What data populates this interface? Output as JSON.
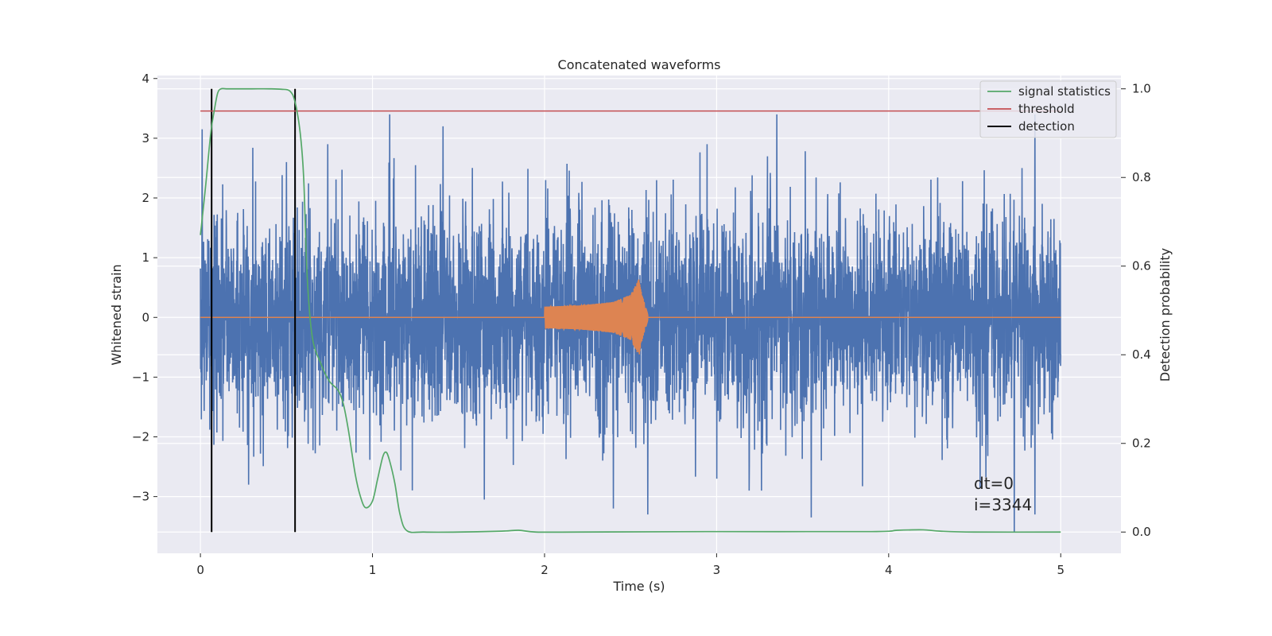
{
  "chart_data": {
    "type": "line",
    "title": "Concatenated waveforms",
    "xlabel": "Time (s)",
    "ylabel": "Whitened strain",
    "y2label": "Detection probability",
    "xlim": [
      -0.25,
      5.35
    ],
    "ylim": [
      -3.95,
      4.05
    ],
    "y2lim": [
      -0.048,
      1.03
    ],
    "xticks": [
      0,
      1,
      2,
      3,
      4,
      5
    ],
    "xtick_labels": [
      "0",
      "1",
      "2",
      "3",
      "4",
      "5"
    ],
    "yticks": [
      -3,
      -2,
      -1,
      0,
      1,
      2,
      3,
      4
    ],
    "ytick_labels": [
      "−3",
      "−2",
      "−1",
      "0",
      "1",
      "2",
      "3",
      "4"
    ],
    "y2ticks": [
      0.0,
      0.2,
      0.4,
      0.6,
      0.8,
      1.0
    ],
    "y2tick_labels": [
      "0.0",
      "0.2",
      "0.4",
      "0.6",
      "0.8",
      "1.0"
    ],
    "grid": true,
    "legend_position": "top-right",
    "legend": [
      "signal statistics",
      "threshold",
      "detection"
    ],
    "colors": {
      "strain": "#4c72b0",
      "template": "#dd8452",
      "signal_statistics": "#55a868",
      "threshold": "#c44e52",
      "detection": "#000000",
      "plot_bg": "#eaeaf2",
      "grid": "#ffffff"
    },
    "series": [
      {
        "name": "Whitened strain",
        "axis": "left",
        "kind": "noise-envelope",
        "x_range": [
          0,
          5
        ],
        "peaks_upper": [
          [
            0.01,
            3.15
          ],
          [
            0.5,
            2.6
          ],
          [
            0.55,
            3.05
          ],
          [
            0.74,
            2.9
          ],
          [
            1.1,
            3.4
          ],
          [
            1.41,
            3.2
          ],
          [
            3.35,
            3.4
          ],
          [
            4.85,
            3.4
          ]
        ],
        "peaks_lower": [
          [
            0.28,
            -2.8
          ],
          [
            1.65,
            -3.05
          ],
          [
            2.4,
            -3.2
          ],
          [
            2.6,
            -3.3
          ],
          [
            3.55,
            -3.35
          ],
          [
            4.73,
            -3.6
          ],
          [
            4.85,
            -3.3
          ]
        ],
        "typical_amplitude": 2.1
      },
      {
        "name": "Injected waveform",
        "axis": "left",
        "kind": "chirp",
        "x": [
          2.0,
          2.2,
          2.4,
          2.5,
          2.55,
          2.56,
          2.6
        ],
        "amplitude": [
          0.18,
          0.2,
          0.26,
          0.38,
          0.65,
          0.45,
          0.05
        ]
      },
      {
        "name": "signal statistics",
        "axis": "right",
        "x": [
          0.0,
          0.03,
          0.06,
          0.08,
          0.1,
          0.12,
          0.15,
          0.2,
          0.3,
          0.4,
          0.47,
          0.52,
          0.55,
          0.58,
          0.6,
          0.62,
          0.65,
          0.7,
          0.75,
          0.8,
          0.83,
          0.86,
          0.9,
          0.93,
          0.96,
          1.0,
          1.03,
          1.06,
          1.08,
          1.1,
          1.13,
          1.16,
          1.2,
          1.3,
          1.5,
          1.75,
          1.85,
          1.95,
          2.2,
          3.0,
          3.9,
          4.05,
          4.2,
          4.3,
          4.5,
          5.0
        ],
        "values": [
          0.67,
          0.78,
          0.9,
          0.95,
          0.99,
          1.0,
          1.0,
          1.0,
          1.0,
          1.0,
          0.999,
          0.995,
          0.97,
          0.9,
          0.8,
          0.58,
          0.44,
          0.38,
          0.34,
          0.32,
          0.29,
          0.23,
          0.13,
          0.08,
          0.055,
          0.07,
          0.12,
          0.17,
          0.18,
          0.16,
          0.11,
          0.04,
          0.003,
          0.0,
          0.0,
          0.002,
          0.004,
          0.0,
          0.0,
          0.001,
          0.001,
          0.004,
          0.005,
          0.002,
          0.0,
          0.0
        ]
      },
      {
        "name": "threshold",
        "axis": "right",
        "x": [
          0,
          5
        ],
        "values": [
          0.95,
          0.95
        ]
      },
      {
        "name": "detection",
        "axis": "right",
        "kind": "vertical-lines",
        "x": [
          0.065,
          0.55
        ],
        "ymin": 0.0,
        "ymax": 1.0
      }
    ],
    "annotations": [
      "dt=0",
      "i=3344"
    ]
  }
}
